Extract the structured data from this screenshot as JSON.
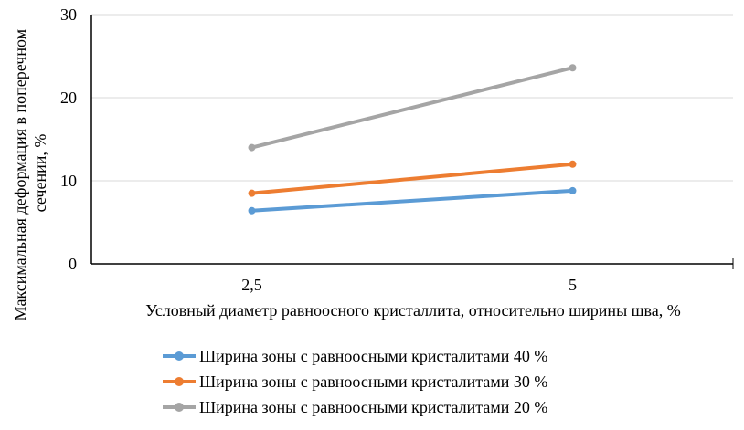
{
  "chart_data": {
    "type": "line",
    "categories": [
      "2,5",
      "5"
    ],
    "series": [
      {
        "name": "Ширина зоны с равноосными кристалитами 40 %",
        "values": [
          6.4,
          8.8
        ],
        "color": "#5b9bd5"
      },
      {
        "name": "Ширина зоны с равноосными кристалитами 30 %",
        "values": [
          8.5,
          12.0
        ],
        "color": "#ed7d31"
      },
      {
        "name": "Ширина зоны с равноосными кристалитами 20 %",
        "values": [
          14.0,
          23.6
        ],
        "color": "#a5a5a5"
      }
    ],
    "xlabel": "Условный диаметр равноосного кристаллита, относительно ширины шва, %",
    "ylabel_lines": [
      "Максимальная деформация в поперечном",
      "сечении, %"
    ],
    "ylim": [
      0,
      30
    ],
    "yticks": [
      0,
      10,
      20,
      30
    ],
    "grid": true,
    "legend_position": "bottom"
  }
}
